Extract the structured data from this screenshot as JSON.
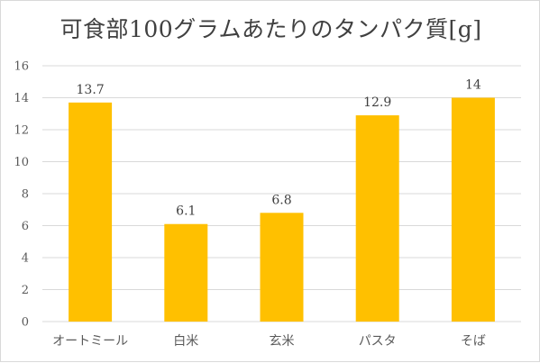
{
  "chart_data": {
    "type": "bar",
    "title": "可食部100グラムあたりのタンパク質[g]",
    "categories": [
      "オートミール",
      "白米",
      "玄米",
      "パスタ",
      "そば"
    ],
    "values": [
      13.7,
      6.1,
      6.8,
      12.9,
      14
    ],
    "data_labels": [
      "13.7",
      "6.1",
      "6.8",
      "12.9",
      "14"
    ],
    "ylim": [
      0,
      16
    ],
    "yticks": [
      0,
      2,
      4,
      6,
      8,
      10,
      12,
      14,
      16
    ],
    "grid": true,
    "legend": "none",
    "bar_color": "#FFC000",
    "grid_color": "#d9d9d9"
  }
}
